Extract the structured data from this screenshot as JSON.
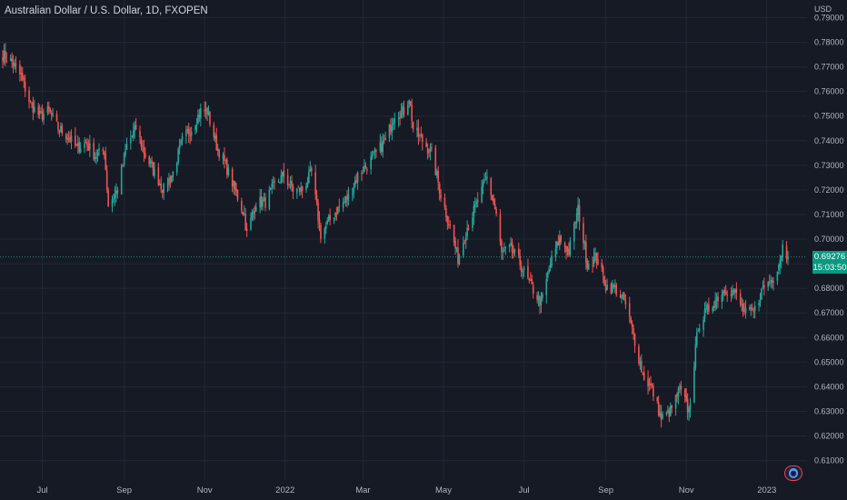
{
  "header": {
    "title": "Australian Dollar / U.S. Dollar, 1D, FXOPEN"
  },
  "axis": {
    "currency": "USD"
  },
  "last_price": {
    "price": "0.69276",
    "countdown": "15:03:50"
  },
  "logo": {
    "icon": "tradingview-icon"
  },
  "colors": {
    "background": "#161a25",
    "up": "#26a69a",
    "down": "#ef5350",
    "grid": "#222736",
    "badge": "#089981",
    "text": "#b2b5be"
  },
  "chart_data": {
    "type": "candlestick",
    "title": "Australian Dollar / U.S. Dollar, 1D, FXOPEN",
    "y_axis_side": "right",
    "y_unit": "USD",
    "ylim": [
      0.6,
      0.79
    ],
    "y_ticks": [
      "0.79000",
      "0.78000",
      "0.77000",
      "0.76000",
      "0.75000",
      "0.74000",
      "0.73000",
      "0.72000",
      "0.71000",
      "0.70000",
      "0.69000",
      "0.68000",
      "0.67000",
      "0.66000",
      "0.65000",
      "0.64000",
      "0.63000",
      "0.62000",
      "0.61000"
    ],
    "x_ticks": [
      "Jul",
      "Sep",
      "Nov",
      "2022",
      "Mar",
      "May",
      "Jul",
      "Sep",
      "Nov",
      "2023"
    ],
    "x_range": [
      "2021-06-01",
      "2023-01-17"
    ],
    "grid": true,
    "last_close": 0.69276,
    "close_path": [
      [
        "2021-06-01",
        0.775
      ],
      [
        "2021-06-08",
        0.772
      ],
      [
        "2021-06-15",
        0.766
      ],
      [
        "2021-06-22",
        0.755
      ],
      [
        "2021-06-29",
        0.75
      ],
      [
        "2021-07-06",
        0.752
      ],
      [
        "2021-07-13",
        0.745
      ],
      [
        "2021-07-20",
        0.742
      ],
      [
        "2021-07-27",
        0.737
      ],
      [
        "2021-08-03",
        0.739
      ],
      [
        "2021-08-10",
        0.734
      ],
      [
        "2021-08-17",
        0.736
      ],
      [
        "2021-08-20",
        0.714
      ],
      [
        "2021-08-27",
        0.72
      ],
      [
        "2021-09-03",
        0.738
      ],
      [
        "2021-09-10",
        0.745
      ],
      [
        "2021-09-17",
        0.734
      ],
      [
        "2021-09-24",
        0.727
      ],
      [
        "2021-10-01",
        0.72
      ],
      [
        "2021-10-08",
        0.727
      ],
      [
        "2021-10-15",
        0.74
      ],
      [
        "2021-10-22",
        0.745
      ],
      [
        "2021-10-29",
        0.752
      ],
      [
        "2021-11-03",
        0.752
      ],
      [
        "2021-11-10",
        0.738
      ],
      [
        "2021-11-17",
        0.73
      ],
      [
        "2021-11-24",
        0.72
      ],
      [
        "2021-12-01",
        0.71
      ],
      [
        "2021-12-03",
        0.702
      ],
      [
        "2021-12-10",
        0.715
      ],
      [
        "2021-12-17",
        0.715
      ],
      [
        "2021-12-24",
        0.722
      ],
      [
        "2021-12-31",
        0.726
      ],
      [
        "2022-01-07",
        0.72
      ],
      [
        "2022-01-14",
        0.72
      ],
      [
        "2022-01-21",
        0.727
      ],
      [
        "2022-01-28",
        0.702
      ],
      [
        "2022-02-04",
        0.708
      ],
      [
        "2022-02-11",
        0.713
      ],
      [
        "2022-02-18",
        0.717
      ],
      [
        "2022-02-25",
        0.726
      ],
      [
        "2022-03-04",
        0.73
      ],
      [
        "2022-03-11",
        0.735
      ],
      [
        "2022-03-18",
        0.74
      ],
      [
        "2022-03-25",
        0.751
      ],
      [
        "2022-04-01",
        0.752
      ],
      [
        "2022-04-05",
        0.758
      ],
      [
        "2022-04-08",
        0.745
      ],
      [
        "2022-04-15",
        0.74
      ],
      [
        "2022-04-22",
        0.735
      ],
      [
        "2022-04-29",
        0.718
      ],
      [
        "2022-05-06",
        0.705
      ],
      [
        "2022-05-12",
        0.692
      ],
      [
        "2022-05-19",
        0.705
      ],
      [
        "2022-05-26",
        0.714
      ],
      [
        "2022-06-03",
        0.725
      ],
      [
        "2022-06-10",
        0.71
      ],
      [
        "2022-06-14",
        0.694
      ],
      [
        "2022-06-21",
        0.696
      ],
      [
        "2022-06-28",
        0.69
      ],
      [
        "2022-07-05",
        0.682
      ],
      [
        "2022-07-14",
        0.674
      ],
      [
        "2022-07-21",
        0.69
      ],
      [
        "2022-07-28",
        0.7
      ],
      [
        "2022-08-04",
        0.695
      ],
      [
        "2022-08-11",
        0.712
      ],
      [
        "2022-08-18",
        0.69
      ],
      [
        "2022-08-25",
        0.693
      ],
      [
        "2022-09-01",
        0.681
      ],
      [
        "2022-09-08",
        0.68
      ],
      [
        "2022-09-15",
        0.675
      ],
      [
        "2022-09-22",
        0.661
      ],
      [
        "2022-09-29",
        0.645
      ],
      [
        "2022-10-06",
        0.639
      ],
      [
        "2022-10-13",
        0.627
      ],
      [
        "2022-10-20",
        0.63
      ],
      [
        "2022-10-27",
        0.639
      ],
      [
        "2022-11-03",
        0.63
      ],
      [
        "2022-11-10",
        0.665
      ],
      [
        "2022-11-17",
        0.671
      ],
      [
        "2022-11-24",
        0.676
      ],
      [
        "2022-12-01",
        0.68
      ],
      [
        "2022-12-08",
        0.678
      ],
      [
        "2022-12-15",
        0.67
      ],
      [
        "2022-12-22",
        0.67
      ],
      [
        "2022-12-29",
        0.68
      ],
      [
        "2023-01-05",
        0.684
      ],
      [
        "2023-01-10",
        0.69
      ],
      [
        "2023-01-13",
        0.697
      ],
      [
        "2023-01-17",
        0.6928
      ]
    ]
  }
}
